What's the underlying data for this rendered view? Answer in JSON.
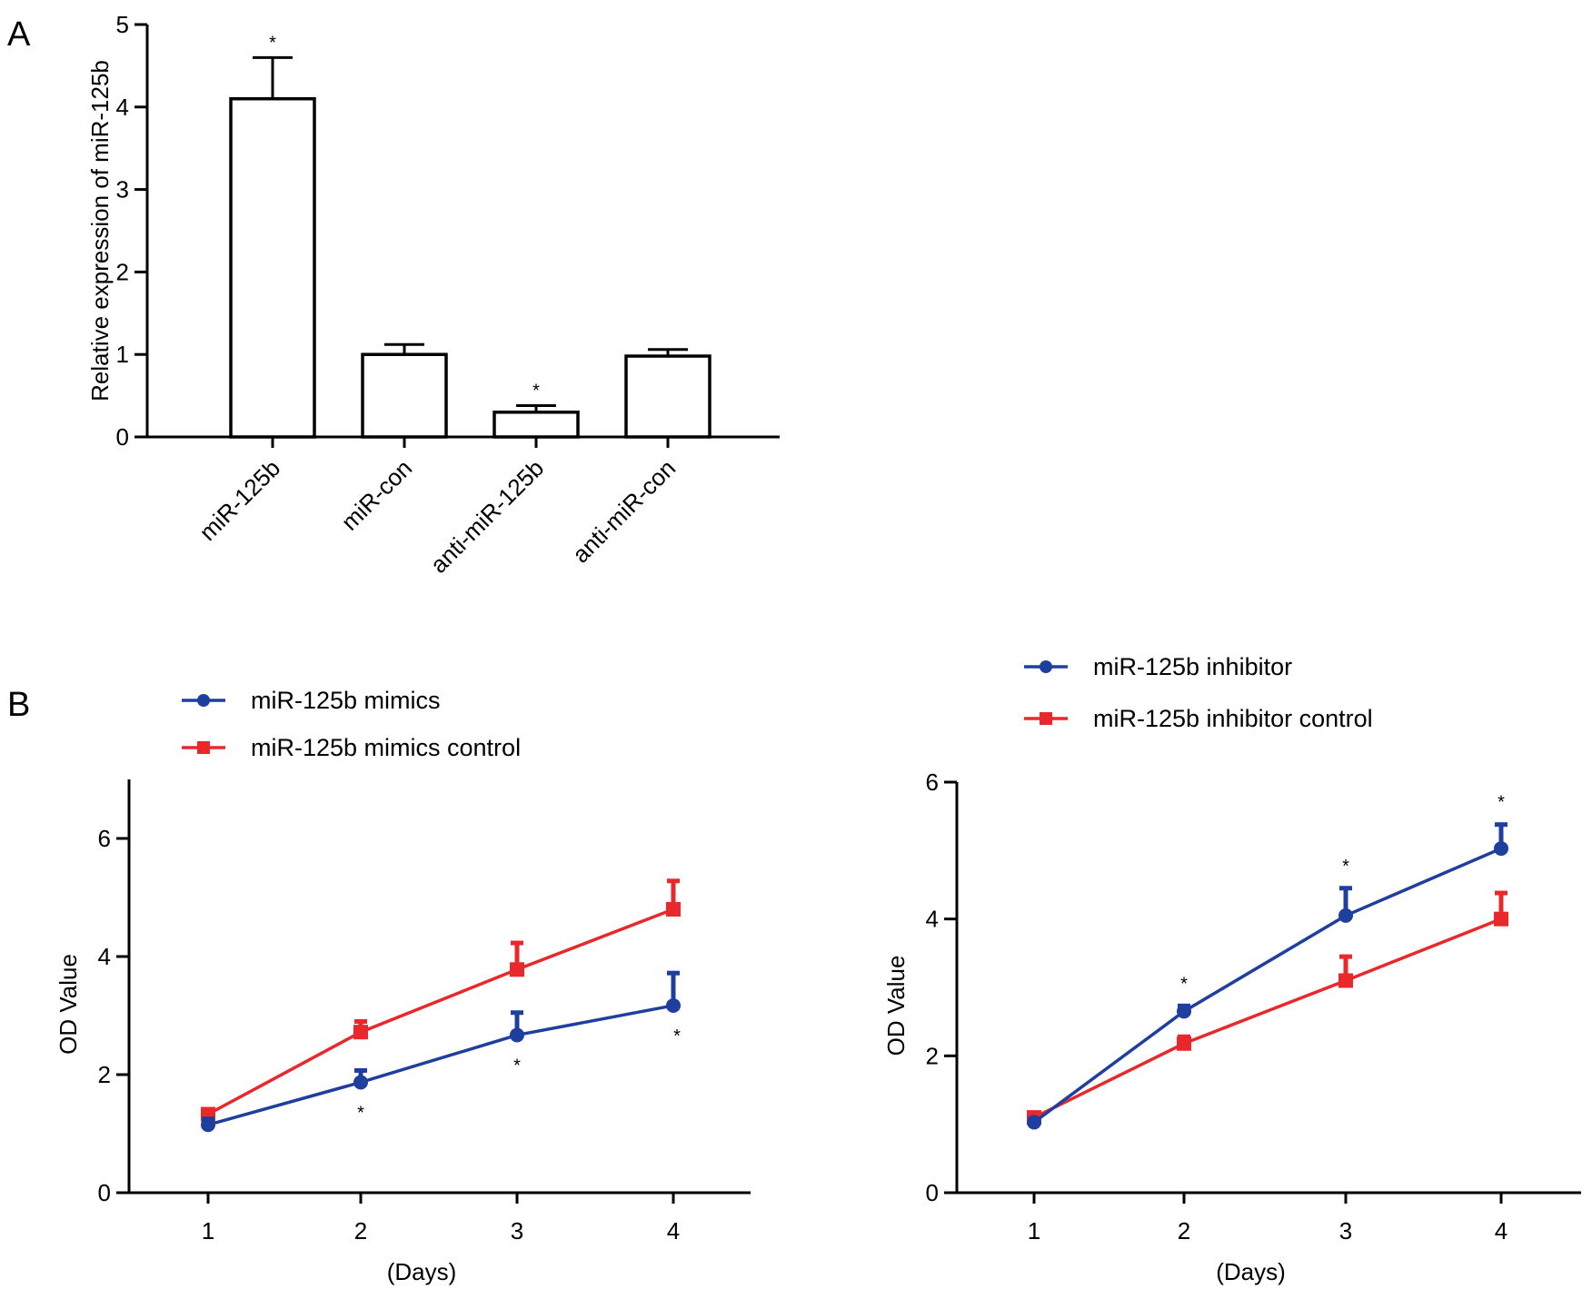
{
  "panel_labels": {
    "a": "A",
    "b": "B"
  },
  "chart_data": [
    {
      "type": "bar",
      "panel": "A",
      "title": "",
      "ylabel": "Relative expression of miR-125b",
      "xlabel": "",
      "ylim": [
        0,
        5
      ],
      "yticks": [
        0,
        1,
        2,
        3,
        4,
        5
      ],
      "categories": [
        "miR-125b",
        "miR-con",
        "anti-miR-125b",
        "anti-miR-con"
      ],
      "values": [
        4.1,
        1.0,
        0.3,
        0.98
      ],
      "errors": [
        0.5,
        0.12,
        0.08,
        0.08
      ],
      "significance": [
        "*",
        "",
        "*",
        ""
      ],
      "bar_fill": "#ffffff",
      "bar_stroke": "#000000",
      "grid": false
    },
    {
      "type": "line",
      "panel": "B-left",
      "title": "",
      "xlabel": "(Days)",
      "ylabel": "OD Value",
      "x": [
        1,
        2,
        3,
        4
      ],
      "xlim": [
        0.5,
        4.5
      ],
      "ylim": [
        0,
        7
      ],
      "yticks": [
        0,
        2,
        4,
        6
      ],
      "legend_position": "top-left",
      "grid": false,
      "series": [
        {
          "name": "miR-125b mimics",
          "color": "#1f3f9f",
          "marker": "circle",
          "values": [
            1.15,
            1.87,
            2.67,
            3.17
          ],
          "errors": [
            0.1,
            0.2,
            0.38,
            0.55
          ],
          "significance": [
            "",
            "*",
            "*",
            "*"
          ]
        },
        {
          "name": "miR-125b mimics control",
          "color": "#e8282b",
          "marker": "square",
          "values": [
            1.33,
            2.72,
            3.78,
            4.8
          ],
          "errors": [
            0.08,
            0.18,
            0.45,
            0.48
          ],
          "significance": [
            "",
            "",
            "",
            ""
          ]
        }
      ]
    },
    {
      "type": "line",
      "panel": "B-right",
      "title": "",
      "xlabel": "(Days)",
      "ylabel": "OD Value",
      "x": [
        1,
        2,
        3,
        4
      ],
      "xlim": [
        0.5,
        4.5
      ],
      "ylim": [
        0,
        6
      ],
      "yticks": [
        0,
        2,
        4,
        6
      ],
      "legend_position": "top",
      "grid": false,
      "series": [
        {
          "name": "miR-125b inhibitor",
          "color": "#1f3f9f",
          "marker": "circle",
          "values": [
            1.03,
            2.65,
            4.05,
            5.03
          ],
          "errors": [
            0.05,
            0.08,
            0.4,
            0.35
          ],
          "significance": [
            "",
            "*",
            "*",
            "*"
          ]
        },
        {
          "name": "miR-125b inhibitor control",
          "color": "#e8282b",
          "marker": "square",
          "values": [
            1.1,
            2.18,
            3.1,
            4.0
          ],
          "errors": [
            0.05,
            0.1,
            0.35,
            0.38
          ],
          "significance": [
            "",
            "",
            "",
            ""
          ]
        }
      ]
    }
  ]
}
